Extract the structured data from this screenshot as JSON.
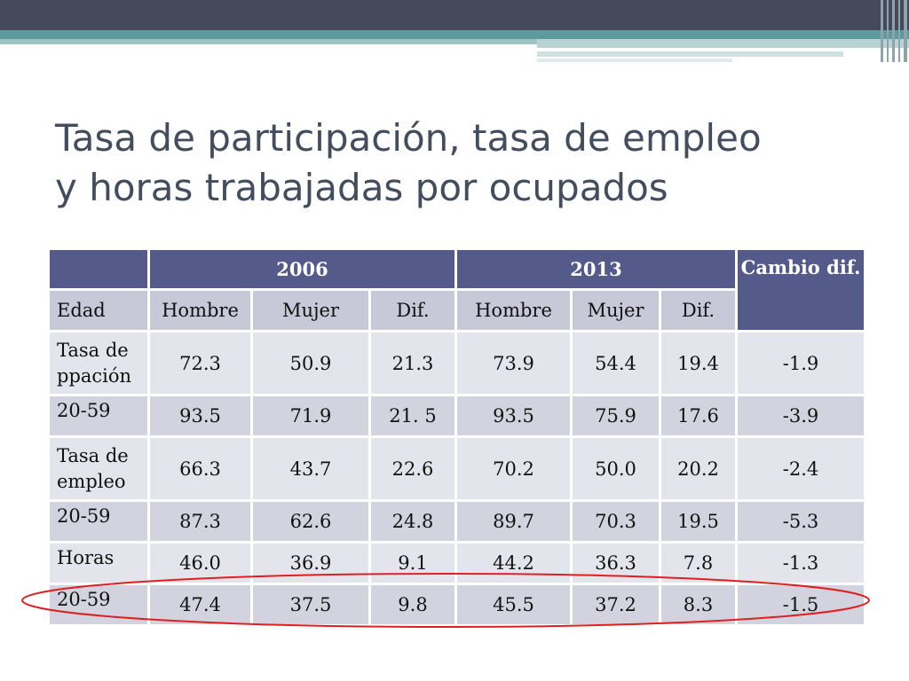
{
  "slide": {
    "title_line1": "Tasa de participación, tasa de empleo",
    "title_line2": "y horas trabajadas por ocupados"
  },
  "table": {
    "year1": "2006",
    "year2": "2013",
    "cambio": "Cambio dif.",
    "col_edad": "Edad",
    "col_hombre": "Hombre",
    "col_mujer": "Mujer",
    "col_dif": "Dif.",
    "rows": [
      {
        "label": "Tasa de ppación",
        "h06": "72.3",
        "m06": "50.9",
        "d06": "21.3",
        "h13": "73.9",
        "m13": "54.4",
        "d13": "19.4",
        "cambio": "-1.9"
      },
      {
        "label": "20-59",
        "h06": "93.5",
        "m06": "71.9",
        "d06": "21. 5",
        "h13": "93.5",
        "m13": "75.9",
        "d13": "17.6",
        "cambio": "-3.9"
      },
      {
        "label": "Tasa de empleo",
        "h06": "66.3",
        "m06": "43.7",
        "d06": "22.6",
        "h13": "70.2",
        "m13": "50.0",
        "d13": "20.2",
        "cambio": "-2.4"
      },
      {
        "label": "20-59",
        "h06": "87.3",
        "m06": "62.6",
        "d06": "24.8",
        "h13": "89.7",
        "m13": "70.3",
        "d13": "19.5",
        "cambio": "-5.3"
      },
      {
        "label": "Horas",
        "h06": "46.0",
        "m06": "36.9",
        "d06": "9.1",
        "h13": "44.2",
        "m13": "36.3",
        "d13": "7.8",
        "cambio": "-1.3"
      },
      {
        "label": "20-59",
        "h06": "47.4",
        "m06": "37.5",
        "d06": "9.8",
        "h13": "45.5",
        "m13": "37.2",
        "d13": "8.3",
        "cambio": "-1.5"
      }
    ]
  },
  "colors": {
    "header": "#545a8a",
    "subheader": "#c8c9d8",
    "row_light": "#e4e5ec",
    "row_dark": "#d2d3df",
    "highlight_ellipse": "#e02020"
  }
}
